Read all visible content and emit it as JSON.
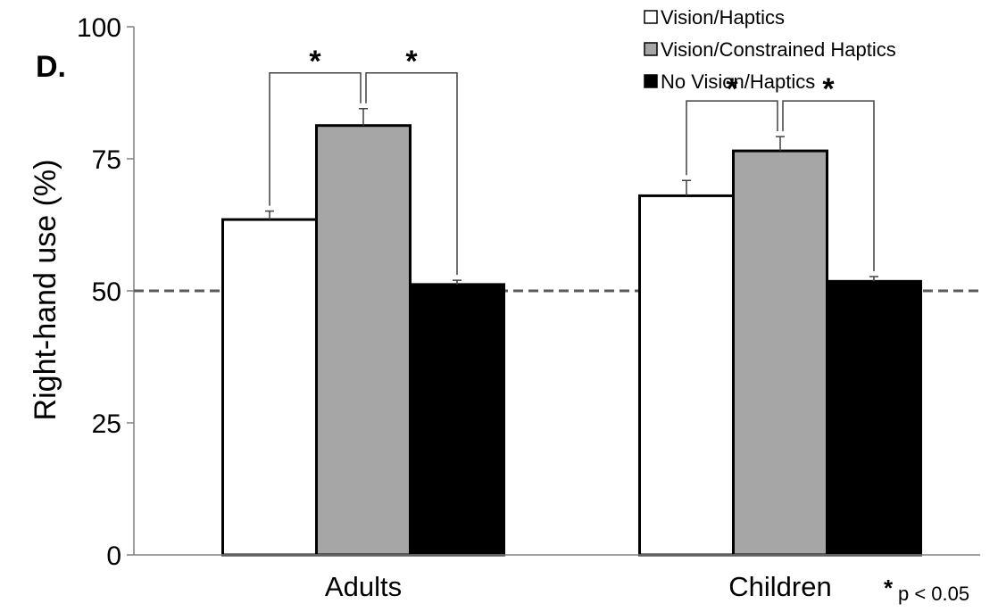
{
  "panel_label": "D.",
  "note": {
    "star": "*",
    "text": "p < 0.05"
  },
  "chart_data": {
    "type": "bar",
    "ylabel": "Right-hand use (%)",
    "xlabel": "",
    "ylim": [
      0,
      100
    ],
    "yticks": [
      0,
      25,
      50,
      75,
      100
    ],
    "categories": [
      "Adults",
      "Children"
    ],
    "series": [
      {
        "name": "Vision/Haptics",
        "values": [
          63.5,
          68.0
        ],
        "errors": [
          1.6,
          2.9
        ],
        "color": "#ffffff"
      },
      {
        "name": "Vision/Constrained Haptics",
        "values": [
          81.3,
          76.5
        ],
        "errors": [
          3.2,
          2.7
        ],
        "color": "#a6a6a6"
      },
      {
        "name": "No Vision/Haptics",
        "values": [
          51.2,
          51.8
        ],
        "errors": [
          0.8,
          0.9
        ],
        "color": "#000000"
      }
    ],
    "reference_line": {
      "value": 50,
      "style": "dashed",
      "color": "#595959"
    },
    "significance": [
      {
        "category": 0,
        "from_series": 0,
        "to_series": 1,
        "label": "*"
      },
      {
        "category": 0,
        "from_series": 1,
        "to_series": 2,
        "label": "*"
      },
      {
        "category": 1,
        "from_series": 0,
        "to_series": 1,
        "label": "*"
      },
      {
        "category": 1,
        "from_series": 1,
        "to_series": 2,
        "label": "*"
      }
    ],
    "grid": false,
    "legend": "top-right"
  }
}
